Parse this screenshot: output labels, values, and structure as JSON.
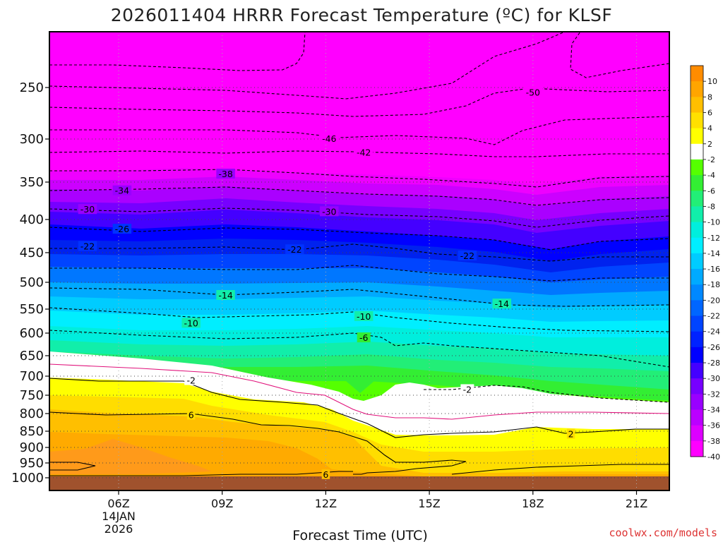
{
  "chart_data": {
    "type": "heatmap",
    "title": "2026011404 HRRR Forecast Temperature (ºC) for KLSF",
    "xlabel": "Forecast Time (UTC)",
    "ylabel": "",
    "x_ticks": [
      {
        "hour": 6,
        "label": "06Z"
      },
      {
        "hour": 9,
        "label": "09Z"
      },
      {
        "hour": 12,
        "label": "12Z"
      },
      {
        "hour": 15,
        "label": "15Z"
      },
      {
        "hour": 18,
        "label": "18Z"
      },
      {
        "hour": 21,
        "label": "21Z"
      }
    ],
    "x_date_lines": [
      "14JAN",
      "2026"
    ],
    "xlim_hours": [
      4,
      22
    ],
    "y_ticks": [
      250,
      300,
      350,
      400,
      450,
      500,
      550,
      600,
      650,
      700,
      750,
      800,
      850,
      900,
      950,
      1000
    ],
    "ylim_hpa": [
      200,
      1040
    ],
    "colorbar_ticks": [
      10,
      8,
      6,
      4,
      2,
      -2,
      -4,
      -6,
      -8,
      -10,
      -12,
      -14,
      -16,
      -18,
      -20,
      -22,
      -24,
      -26,
      -28,
      -30,
      -32,
      -34,
      -36,
      -38,
      -40
    ],
    "colorbar_colors": [
      "#ff8c00",
      "#ffa500",
      "#ffbf00",
      "#ffe000",
      "#ffff00",
      "#ffffff",
      "#55ff00",
      "#33ee33",
      "#22ee77",
      "#11eeaa",
      "#00eedd",
      "#00eeff",
      "#00ccff",
      "#00aaff",
      "#0088ff",
      "#0066ff",
      "#0044ff",
      "#0022ff",
      "#0000ff",
      "#4400ff",
      "#7700ff",
      "#9900ff",
      "#bb00ff",
      "#dd00ff",
      "#ff00ff"
    ],
    "contour_labels": [
      {
        "text": "-50",
        "hour": 18.0,
        "p": 255
      },
      {
        "text": "-46",
        "hour": 12.1,
        "p": 300
      },
      {
        "text": "-42",
        "hour": 13.1,
        "p": 316
      },
      {
        "text": "-38",
        "hour": 9.1,
        "p": 341
      },
      {
        "text": "-34",
        "hour": 6.1,
        "p": 362
      },
      {
        "text": "-30",
        "hour": 5.1,
        "p": 387
      },
      {
        "text": "-30",
        "hour": 12.1,
        "p": 390
      },
      {
        "text": "-26",
        "hour": 6.1,
        "p": 415
      },
      {
        "text": "-22",
        "hour": 5.1,
        "p": 441
      },
      {
        "text": "-22",
        "hour": 11.1,
        "p": 446
      },
      {
        "text": "-22",
        "hour": 16.1,
        "p": 456
      },
      {
        "text": "-14",
        "hour": 9.1,
        "p": 525
      },
      {
        "text": "-14",
        "hour": 17.1,
        "p": 541
      },
      {
        "text": "-10",
        "hour": 8.1,
        "p": 580
      },
      {
        "text": "-10",
        "hour": 13.1,
        "p": 566
      },
      {
        "text": "-6",
        "hour": 13.1,
        "p": 611
      },
      {
        "text": "-2",
        "hour": 8.1,
        "p": 712
      },
      {
        "text": "-2",
        "hour": 16.1,
        "p": 736
      },
      {
        "text": "6",
        "hour": 8.1,
        "p": 805
      },
      {
        "text": "2",
        "hour": 19.1,
        "p": 860
      },
      {
        "text": "6",
        "hour": 12.0,
        "p": 990
      }
    ]
  },
  "credit": "coolwx.com/models"
}
